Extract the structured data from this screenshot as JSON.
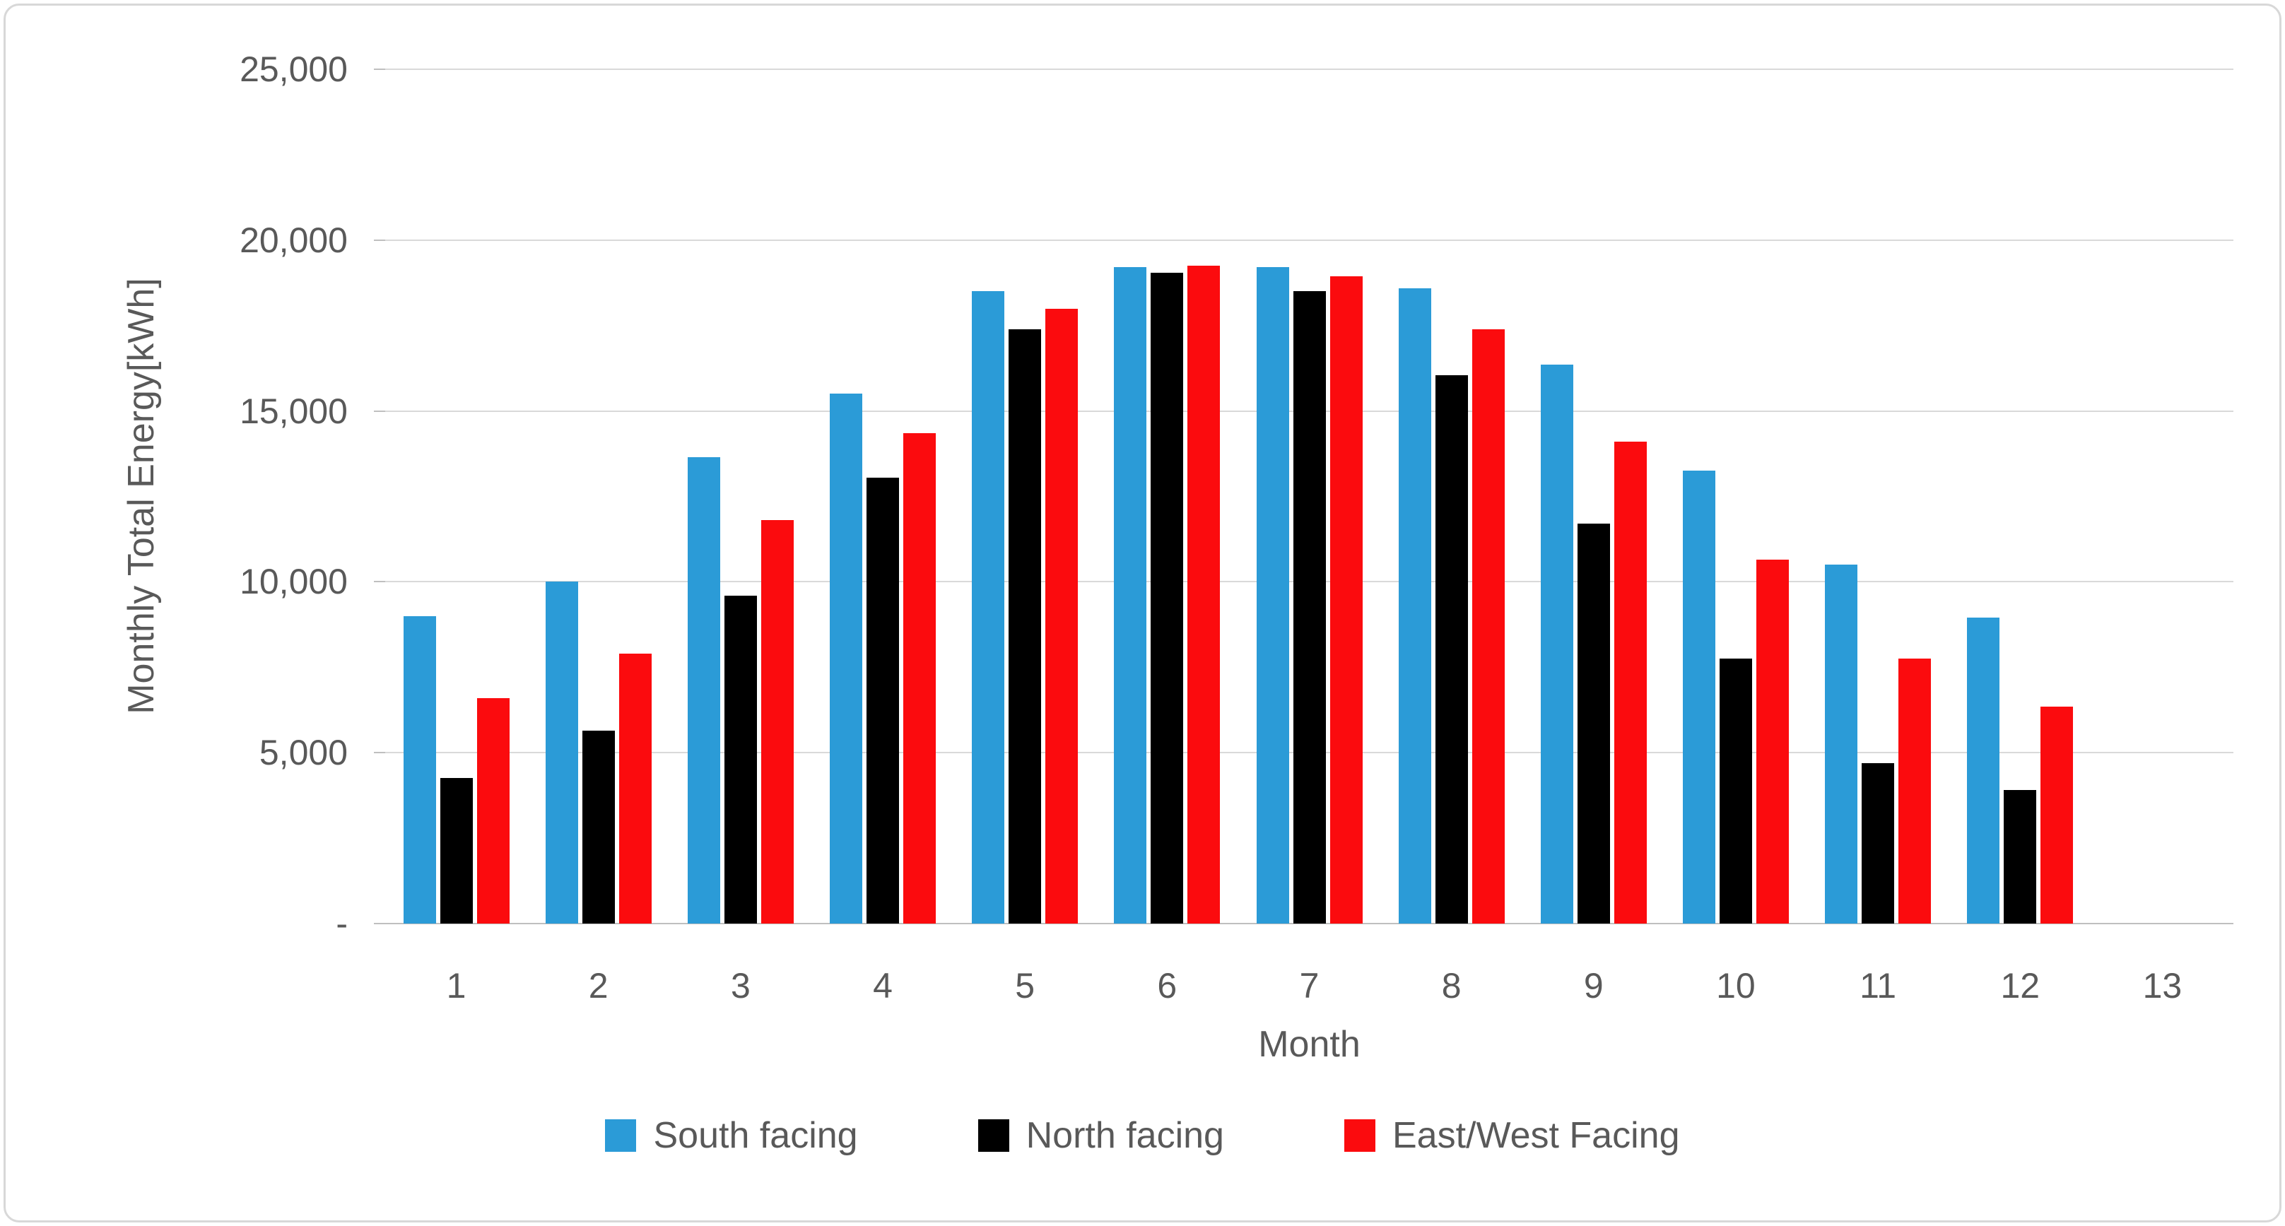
{
  "chart_data": {
    "type": "bar",
    "title": "",
    "xlabel": "Month",
    "ylabel": "Monthly Total Energy[kWh]",
    "ylim": [
      0,
      25000
    ],
    "grid": "horizontal",
    "legend_position": "bottom-center",
    "y_ticks": [
      {
        "value": 25000,
        "label": "25,000"
      },
      {
        "value": 20000,
        "label": "20,000"
      },
      {
        "value": 15000,
        "label": "15,000"
      },
      {
        "value": 10000,
        "label": "10,000"
      },
      {
        "value": 5000,
        "label": "5,000"
      },
      {
        "value": 0,
        "label": "-"
      }
    ],
    "x_tick_labels": [
      "1",
      "2",
      "3",
      "4",
      "5",
      "6",
      "7",
      "8",
      "9",
      "10",
      "11",
      "12",
      "13"
    ],
    "categories": [
      "1",
      "2",
      "3",
      "4",
      "5",
      "6",
      "7",
      "8",
      "9",
      "10",
      "11",
      "12"
    ],
    "series": [
      {
        "name": "South facing",
        "color": "#2B9BD7",
        "values": [
          9000,
          10000,
          13650,
          15500,
          18500,
          19200,
          19200,
          18600,
          16350,
          13250,
          10500,
          8950
        ]
      },
      {
        "name": "North facing",
        "color": "#000000",
        "values": [
          4250,
          5650,
          9600,
          13050,
          17400,
          19050,
          18500,
          16050,
          11700,
          7750,
          4700,
          3900
        ]
      },
      {
        "name": "East/West Facing",
        "color": "#FB0B0E",
        "values": [
          6600,
          7900,
          11800,
          14350,
          18000,
          19250,
          18950,
          17400,
          14100,
          10650,
          7750,
          6350
        ]
      }
    ]
  },
  "colors": {
    "text": "#595959",
    "gridline": "#D9D9D9",
    "axis_line": "#BFBFBF",
    "border": "#D8D8D8",
    "background": "#FFFFFF"
  }
}
